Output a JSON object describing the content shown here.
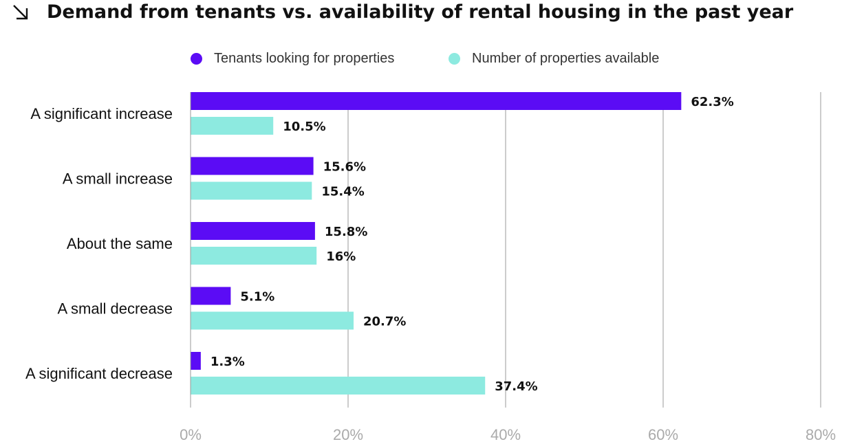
{
  "header": {
    "title": "Demand from tenants vs. availability of rental housing in the past year",
    "icon": "arrow-down-right-icon"
  },
  "chart_data": {
    "type": "bar",
    "orientation": "horizontal",
    "title": "Demand from tenants vs. availability of rental housing in the past year",
    "categories": [
      "A significant increase",
      "A small increase",
      "About the same",
      "A small decrease",
      "A significant decrease"
    ],
    "series": [
      {
        "name": "Tenants looking for properties",
        "color": "#5b0cf5",
        "values": [
          62.3,
          15.6,
          15.8,
          5.1,
          1.3
        ],
        "labels": [
          "62.3%",
          "15.6%",
          "15.8%",
          "5.1%",
          "1.3%"
        ]
      },
      {
        "name": "Number of properties available",
        "color": "#8deae0",
        "values": [
          10.5,
          15.4,
          16,
          20.7,
          37.4
        ],
        "labels": [
          "10.5%",
          "15.4%",
          "16%",
          "20.7%",
          "37.4%"
        ]
      }
    ],
    "xlim": [
      0,
      80
    ],
    "xticks": [
      0,
      20,
      40,
      60,
      80
    ],
    "xtick_labels": [
      "0%",
      "20%",
      "40%",
      "60%",
      "80%"
    ],
    "grid": true,
    "legend_position": "top"
  }
}
